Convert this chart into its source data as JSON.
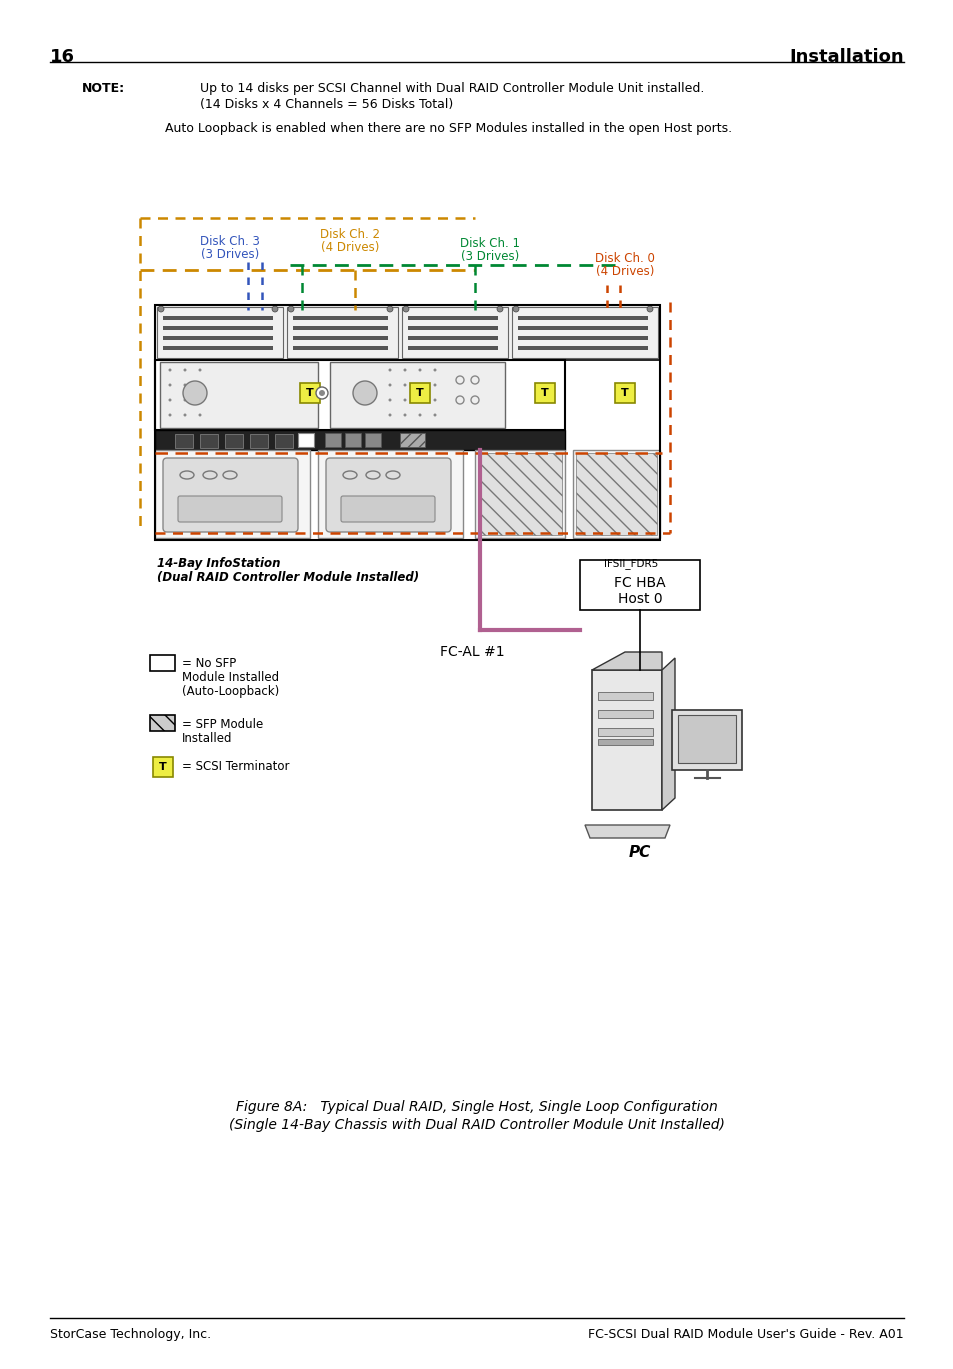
{
  "page_number": "16",
  "header_right": "Installation",
  "note_label": "NOTE:",
  "note_line1": "Up to 14 disks per SCSI Channel with Dual RAID Controller Module Unit installed.",
  "note_line2": "(14 Disks x 4 Channels = 56 Disks Total)",
  "note_line3": "Auto Loopback is enabled when there are no SFP Modules installed in the open Host ports.",
  "disk_ch3_label": "Disk Ch. 3",
  "disk_ch3_sub": "(3 Drives)",
  "disk_ch2_label": "Disk Ch. 2",
  "disk_ch2_sub": "(4 Drives)",
  "disk_ch1_label": "Disk Ch. 1",
  "disk_ch1_sub": "(3 Drives)",
  "disk_ch0_label": "Disk Ch. 0",
  "disk_ch0_sub": "(4 Drives)",
  "color_ch3": "#3355bb",
  "color_ch2": "#cc8800",
  "color_ch1": "#008833",
  "color_ch0": "#cc4400",
  "fc_al_label": "FC-AL #1",
  "fc_hba_line1": "FC HBA",
  "fc_hba_line2": "Host 0",
  "pc_label": "PC",
  "infostation_label": "14-Bay InfoStation",
  "infostation_sub": "(Dual RAID Controller Module Installed)",
  "ifsii_label": "IFSII_FDR5",
  "figure_caption_line1": "Figure 8A:   Typical Dual RAID, Single Host, Single Loop Configuration",
  "figure_caption_line2": "(Single 14-Bay Chassis with Dual RAID Controller Module Unit Installed)",
  "footer_left": "StorCase Technology, Inc.",
  "footer_right": "FC-SCSI Dual RAID Module User's Guide - Rev. A01",
  "bg_color": "#ffffff",
  "pink_color": "#b06090",
  "terminator_fill": "#eeee44",
  "terminator_edge": "#aabb00"
}
